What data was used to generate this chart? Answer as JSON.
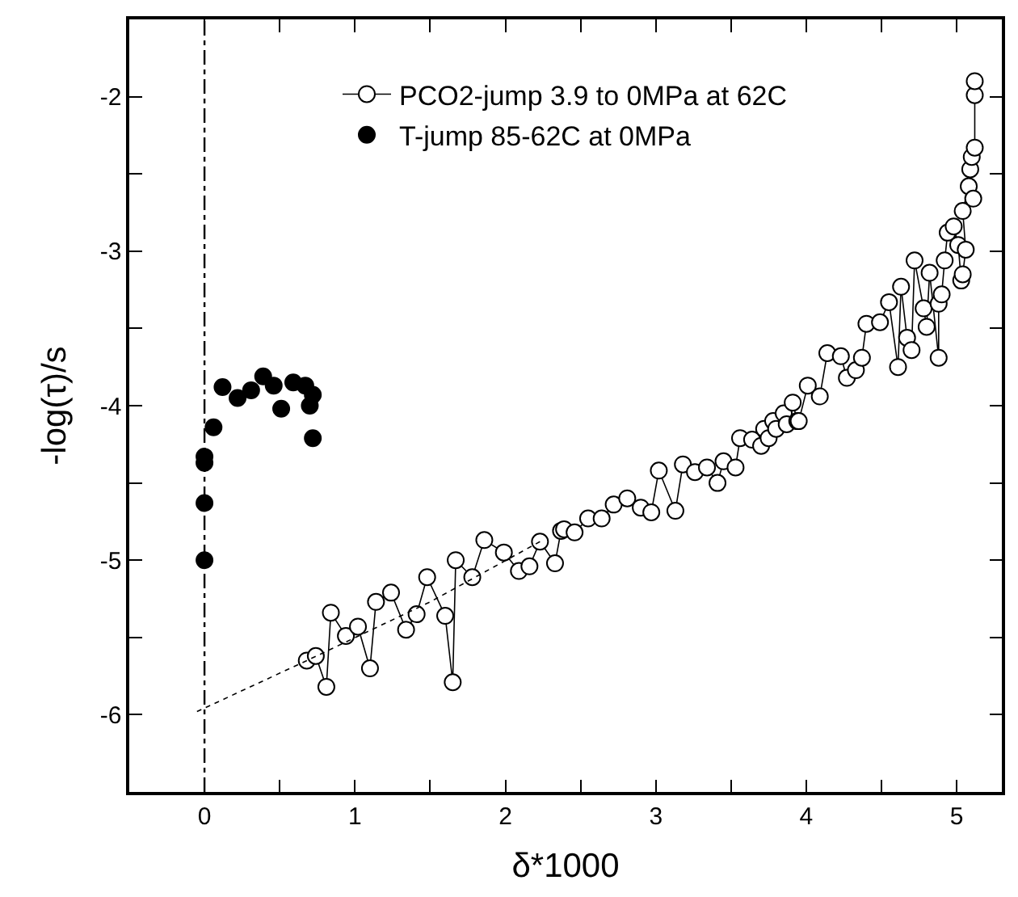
{
  "chart_data": {
    "type": "scatter",
    "xlabel": "δ*1000",
    "ylabel": "-log(τ)/s",
    "xlim": [
      -0.5,
      5.3
    ],
    "ylim": [
      -6.5,
      -1.5
    ],
    "xticks": [
      0,
      {
        "value": 0.5,
        "label": null
      },
      1,
      {
        "value": 1.5,
        "label": null
      },
      2,
      {
        "value": 2.5,
        "label": null
      },
      3,
      {
        "value": 3.5,
        "label": null
      },
      4,
      {
        "value": 4.5,
        "label": null
      },
      5
    ],
    "yticks": [
      -6,
      {
        "value": -5.5,
        "label": null
      },
      -5,
      {
        "value": -4.5,
        "label": null
      },
      -4,
      {
        "value": -3.5,
        "label": null
      },
      -3,
      {
        "value": -2.5,
        "label": null
      },
      -2
    ],
    "legend": "top",
    "series": [
      {
        "name": "PCO2-jump 3.9 to 0MPa at 62C",
        "type": "line",
        "marker": "circle",
        "color": "#000000",
        "line_style": "solid",
        "x": [
          0.68,
          0.74,
          0.81,
          0.84,
          0.94,
          1.02,
          1.1,
          1.14,
          1.24,
          1.34,
          1.41,
          1.48,
          1.6,
          1.65,
          1.67,
          1.78,
          1.86,
          1.99,
          2.09,
          2.16,
          2.23,
          2.33,
          2.37,
          2.39,
          2.46,
          2.55,
          2.64,
          2.72,
          2.81,
          2.9,
          2.97,
          3.02,
          3.13,
          3.18,
          3.26,
          3.34,
          3.41,
          3.45,
          3.53,
          3.56,
          3.64,
          3.7,
          3.72,
          3.75,
          3.78,
          3.8,
          3.85,
          3.87,
          3.91,
          3.94,
          3.95,
          4.01,
          4.09,
          4.14,
          4.23,
          4.27,
          4.33,
          4.37,
          4.4,
          4.49,
          4.55,
          4.61,
          4.63,
          4.67,
          4.7,
          4.72,
          4.78,
          4.8,
          4.82,
          4.88,
          4.88,
          4.9,
          4.92,
          4.94,
          4.98,
          5.01,
          5.03,
          5.04,
          5.06,
          5.04,
          5.08,
          5.11,
          5.09,
          5.1,
          5.12,
          5.12,
          5.12
        ],
        "values": [
          -5.65,
          -5.62,
          -5.82,
          -5.34,
          -5.49,
          -5.43,
          -5.7,
          -5.27,
          -5.21,
          -5.45,
          -5.35,
          -5.11,
          -5.36,
          -5.79,
          -5.0,
          -5.11,
          -4.87,
          -4.95,
          -5.07,
          -5.04,
          -4.88,
          -5.02,
          -4.81,
          -4.8,
          -4.82,
          -4.73,
          -4.73,
          -4.64,
          -4.6,
          -4.66,
          -4.69,
          -4.42,
          -4.68,
          -4.38,
          -4.43,
          -4.4,
          -4.5,
          -4.36,
          -4.4,
          -4.21,
          -4.22,
          -4.26,
          -4.15,
          -4.21,
          -4.1,
          -4.15,
          -4.05,
          -4.12,
          -3.98,
          -4.1,
          -4.1,
          -3.87,
          -3.94,
          -3.66,
          -3.68,
          -3.82,
          -3.77,
          -3.69,
          -3.47,
          -3.46,
          -3.33,
          -3.75,
          -3.23,
          -3.56,
          -3.64,
          -3.06,
          -3.37,
          -3.49,
          -3.14,
          -3.69,
          -3.34,
          -3.28,
          -3.06,
          -2.88,
          -2.84,
          -2.96,
          -3.19,
          -3.15,
          -2.99,
          -2.74,
          -2.58,
          -2.66,
          -2.47,
          -2.39,
          -2.33,
          -1.99,
          -1.9
        ]
      },
      {
        "name": "T-jump 85-62C at 0MPa",
        "marker": "circle",
        "color": "#000000",
        "x": [
          0,
          0,
          0,
          0,
          0.06,
          0.12,
          0.22,
          0.31,
          0.39,
          0.46,
          0.51,
          0.59,
          0.67,
          0.7,
          0.72,
          0.72
        ],
        "values": [
          -5.0,
          -4.63,
          -4.37,
          -4.33,
          -4.14,
          -3.88,
          -3.95,
          -3.9,
          -3.81,
          -3.87,
          -4.02,
          -3.85,
          -3.87,
          -4.0,
          -3.93,
          -4.21
        ]
      },
      {
        "type": "line",
        "marker": "none",
        "color": "#000000",
        "line_style": "dotted",
        "x": [
          -0.05,
          0.68,
          1.5,
          2.23
        ],
        "values": [
          -5.98,
          -5.65,
          -5.27,
          -4.88
        ]
      }
    ],
    "ref_lines": [
      {
        "axis": "x",
        "value": 0,
        "line_style": "dashdot",
        "color": "#000000"
      }
    ]
  }
}
